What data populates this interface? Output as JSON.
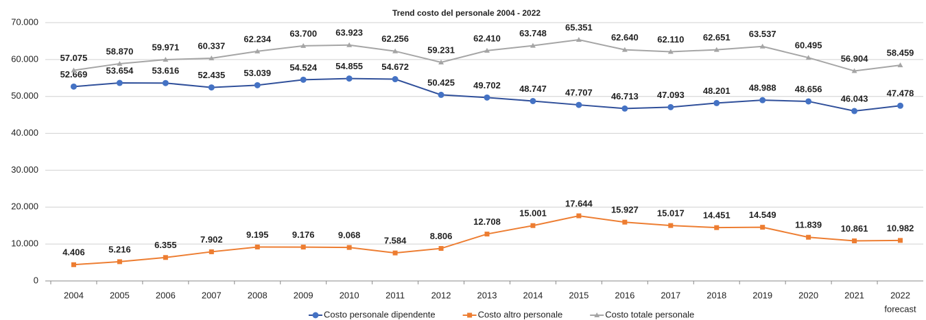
{
  "chart_data": {
    "type": "line",
    "title": "Trend costo del personale 2004 - 2022",
    "categories": [
      "2004",
      "2005",
      "2006",
      "2007",
      "2008",
      "2009",
      "2010",
      "2011",
      "2012",
      "2013",
      "2014",
      "2015",
      "2016",
      "2017",
      "2018",
      "2019",
      "2020",
      "2021",
      "2022"
    ],
    "annotation": "forecast",
    "ylim": [
      0,
      70000
    ],
    "yticks": [
      0,
      {
        "value": 10000,
        "label": "10.000"
      },
      {
        "value": 20000,
        "label": "20.000"
      },
      {
        "value": 30000,
        "label": "30.000"
      },
      {
        "value": 40000,
        "label": "40.000"
      },
      {
        "value": 50000,
        "label": "50.000"
      },
      {
        "value": 60000,
        "label": "60.000"
      },
      {
        "value": 70000,
        "label": "70.000"
      }
    ],
    "grid": true,
    "legend": "bottom",
    "series": [
      {
        "name": "Costo personale dipendente",
        "color": "#2f4f9a",
        "marker_color": "#4472c4",
        "label_color": "#2f5597",
        "marker": "circle",
        "values": [
          52669,
          53654,
          53616,
          52435,
          53039,
          54524,
          54855,
          54672,
          50425,
          49702,
          48747,
          47707,
          46713,
          47093,
          48201,
          48988,
          48656,
          46043,
          47478
        ],
        "value_labels": [
          "52.669",
          "53.654",
          "53.616",
          "52.435",
          "53.039",
          "54.524",
          "54.855",
          "54.672",
          "50.425",
          "49.702",
          "48.747",
          "47.707",
          "46.713",
          "47.093",
          "48.201",
          "48.988",
          "48.656",
          "46.043",
          "47.478"
        ]
      },
      {
        "name": "Costo altro personale",
        "color": "#ed7d31",
        "marker_color": "#ed7d31",
        "label_color": "#e06c1a",
        "marker": "square",
        "values": [
          4406,
          5216,
          6355,
          7902,
          9195,
          9176,
          9068,
          7584,
          8806,
          12708,
          15001,
          17644,
          15927,
          15017,
          14451,
          14549,
          11839,
          10861,
          10982
        ],
        "value_labels": [
          "4.406",
          "5.216",
          "6.355",
          "7.902",
          "9.195",
          "9.176",
          "9.068",
          "7.584",
          "8.806",
          "12.708",
          "15.001",
          "17.644",
          "15.927",
          "15.017",
          "14.451",
          "14.549",
          "11.839",
          "10.861",
          "10.982"
        ]
      },
      {
        "name": "Costo totale personale",
        "color": "#a5a5a5",
        "marker_color": "#a5a5a5",
        "label_color": "#7f7f7f",
        "marker": "triangle",
        "values": [
          57075,
          58870,
          59971,
          60337,
          62234,
          63700,
          63923,
          62256,
          59231,
          62410,
          63748,
          65351,
          62640,
          62110,
          62651,
          63537,
          60495,
          56904,
          58459
        ],
        "value_labels": [
          "57.075",
          "58.870",
          "59.971",
          "60.337",
          "62.234",
          "63.700",
          "63.923",
          "62.256",
          "59.231",
          "62.410",
          "63.748",
          "65.351",
          "62.640",
          "62.110",
          "62.651",
          "63.537",
          "60.495",
          "56.904",
          "58.459"
        ]
      }
    ]
  }
}
